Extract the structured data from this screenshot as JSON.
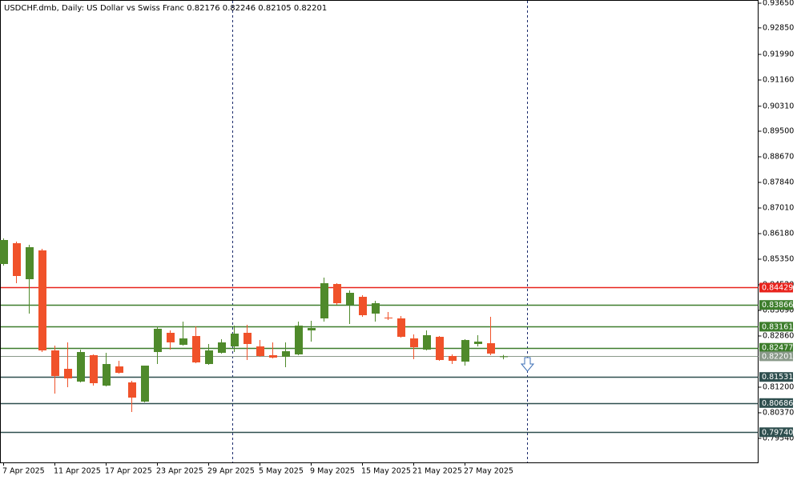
{
  "chart_data": {
    "type": "candlestick",
    "title": "USDCHF.dmb, Daily:  US Dollar vs Swiss Franc  0.82176 0.82246 0.82105 0.82201",
    "categories": [
      "7 Apr 2025",
      null,
      null,
      null,
      "11 Apr 2025",
      null,
      null,
      null,
      "17 Apr 2025",
      null,
      null,
      null,
      "23 Apr 2025",
      null,
      null,
      null,
      "29 Apr 2025",
      null,
      null,
      null,
      "5 May 2025",
      null,
      null,
      null,
      "9 May 2025",
      null,
      null,
      null,
      "15 May 2025",
      null,
      null,
      null,
      "21 May 2025",
      null,
      null,
      null,
      "27 May 2025",
      null,
      null,
      null
    ],
    "open": [
      0.85194,
      0.85868,
      0.84701,
      0.85635,
      0.82392,
      0.81796,
      0.81381,
      0.82237,
      0.81251,
      0.81873,
      0.81355,
      0.80732,
      0.8234,
      0.82963,
      0.82574,
      0.82859,
      0.81951,
      0.82314,
      0.82522,
      0.82963,
      0.82522,
      0.82237,
      0.82185,
      0.82263,
      0.83041,
      0.8343,
      0.84545,
      0.83871,
      0.8413,
      0.83586,
      0.83456,
      0.8343,
      0.82781,
      0.82418,
      0.82833,
      0.82211,
      0.82029,
      0.826,
      0.82626,
      0.82176
    ],
    "high": [
      0.86024,
      0.8592,
      0.85816,
      0.85687,
      0.82548,
      0.82652,
      0.82418,
      0.82263,
      0.82314,
      0.82055,
      0.81407,
      0.81899,
      0.8317,
      0.83041,
      0.83326,
      0.8317,
      0.826,
      0.82755,
      0.83196,
      0.83222,
      0.82729,
      0.82652,
      0.82652,
      0.83326,
      0.83352,
      0.84753,
      0.84571,
      0.84338,
      0.84182,
      0.84001,
      0.83637,
      0.83508,
      0.82911,
      0.83041,
      0.82859,
      0.82263,
      0.82755,
      0.82885,
      0.83482,
      0.82246
    ],
    "low": [
      0.85142,
      0.84571,
      0.83586,
      0.8234,
      0.80992,
      0.81199,
      0.81355,
      0.81251,
      0.81225,
      0.8164,
      0.80395,
      0.80706,
      0.81951,
      0.82418,
      0.82548,
      0.81977,
      0.81925,
      0.82289,
      0.8234,
      0.82081,
      0.82185,
      0.82133,
      0.81848,
      0.82237,
      0.82678,
      0.83326,
      0.83871,
      0.83248,
      0.83482,
      0.83326,
      0.83378,
      0.82807,
      0.82107,
      0.82392,
      0.82055,
      0.81951,
      0.81899,
      0.82522,
      0.82237,
      0.82105
    ],
    "close": [
      0.85972,
      0.84805,
      0.85739,
      0.82392,
      0.81562,
      0.81484,
      0.8234,
      0.81329,
      0.81951,
      0.81666,
      0.80862,
      0.81899,
      0.83093,
      0.82652,
      0.82781,
      0.82003,
      0.82392,
      0.82652,
      0.82937,
      0.826,
      0.82211,
      0.82159,
      0.82366,
      0.83196,
      0.83119,
      0.84571,
      0.83923,
      0.8426,
      0.83534,
      0.83923,
      0.8343,
      0.82833,
      0.82496,
      0.82885,
      0.82081,
      0.82055,
      0.82729,
      0.82678,
      0.82289,
      0.82201
    ],
    "up_color": "#4f8a2b",
    "down_color": "#f0522a",
    "ylim": [
      0.78761,
      0.93754
    ],
    "yticks": [
      {
        "value": 0.9365,
        "label": "0.93650"
      },
      {
        "value": 0.9285,
        "label": "0.92850"
      },
      {
        "value": 0.9199,
        "label": "0.91990"
      },
      {
        "value": 0.9116,
        "label": "0.91160"
      },
      {
        "value": 0.9031,
        "label": "0.90310"
      },
      {
        "value": 0.895,
        "label": "0.89500"
      },
      {
        "value": 0.8867,
        "label": "0.88670"
      },
      {
        "value": 0.8784,
        "label": "0.87840"
      },
      {
        "value": 0.8701,
        "label": "0.87010"
      },
      {
        "value": 0.8618,
        "label": "0.86180"
      },
      {
        "value": 0.8535,
        "label": "0.85350"
      },
      {
        "value": 0.8452,
        "label": "0.84520"
      },
      {
        "value": 0.8369,
        "label": "0.83690"
      },
      {
        "value": 0.8286,
        "label": "0.82860"
      },
      {
        "value": 0.812,
        "label": "0.81200"
      },
      {
        "value": 0.8037,
        "label": "0.80370"
      },
      {
        "value": 0.7954,
        "label": "0.79540"
      }
    ],
    "levels": [
      {
        "value": 0.84429,
        "label": "0.84429",
        "color": "#e8231c"
      },
      {
        "value": 0.83866,
        "label": "0.83866",
        "color": "#3d7d2c"
      },
      {
        "value": 0.83161,
        "label": "0.83161",
        "color": "#3d7d2c"
      },
      {
        "value": 0.82477,
        "label": "0.82477",
        "color": "#3d7d2c"
      },
      {
        "value": 0.82201,
        "label": "0.82201",
        "color": "#8a9a8a"
      },
      {
        "value": 0.81531,
        "label": "0.81531",
        "color": "#2f4f4f"
      },
      {
        "value": 0.80686,
        "label": "0.80686",
        "color": "#2f4f4f"
      },
      {
        "value": 0.7974,
        "label": "0.79740",
        "color": "#2f4f4f"
      }
    ]
  }
}
